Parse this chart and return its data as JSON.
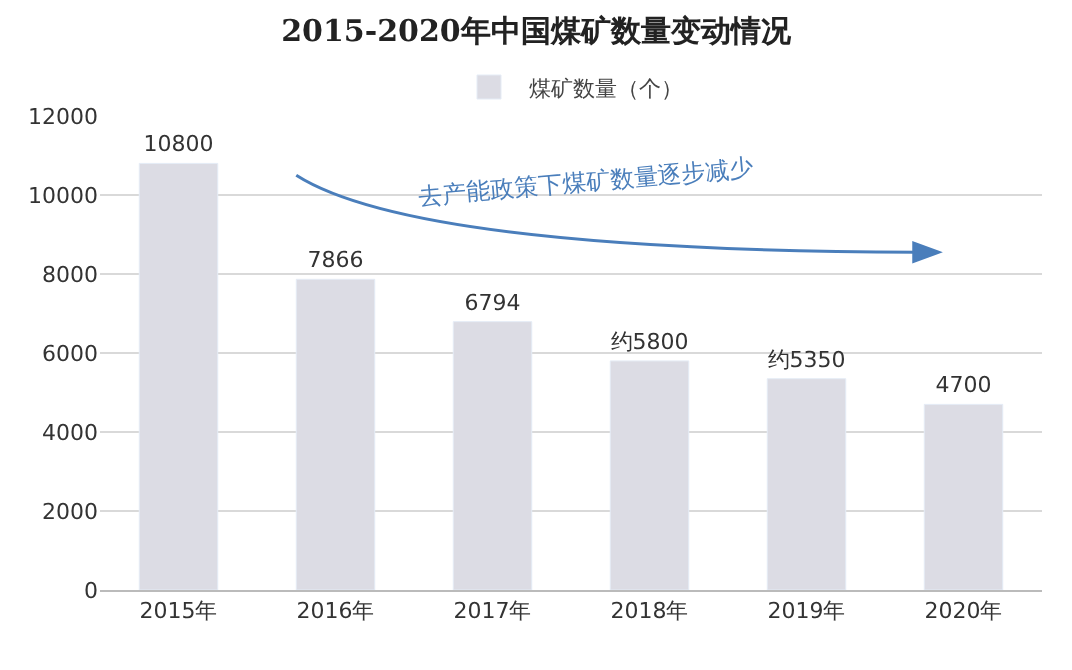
{
  "chart_data": {
    "type": "bar",
    "title": "2015-2020年中国煤矿数量变动情况",
    "categories": [
      "2015年",
      "2016年",
      "2017年",
      "2018年",
      "2019年",
      "2020年"
    ],
    "series": [
      {
        "name": "煤矿数量（个）",
        "color": "#dcdce4",
        "values": [
          10800,
          7866,
          6794,
          5800,
          5350,
          4700
        ],
        "value_labels": [
          "10800",
          "7866",
          "6794",
          "约5800",
          "约5350",
          "4700"
        ]
      }
    ],
    "ylim": [
      0,
      12000
    ],
    "yticks": [
      0,
      2000,
      4000,
      6000,
      8000,
      10000,
      12000
    ],
    "grid": "y",
    "legend": "top",
    "annotations": [
      "去产能政策下煤矿数量逐步减少"
    ]
  }
}
